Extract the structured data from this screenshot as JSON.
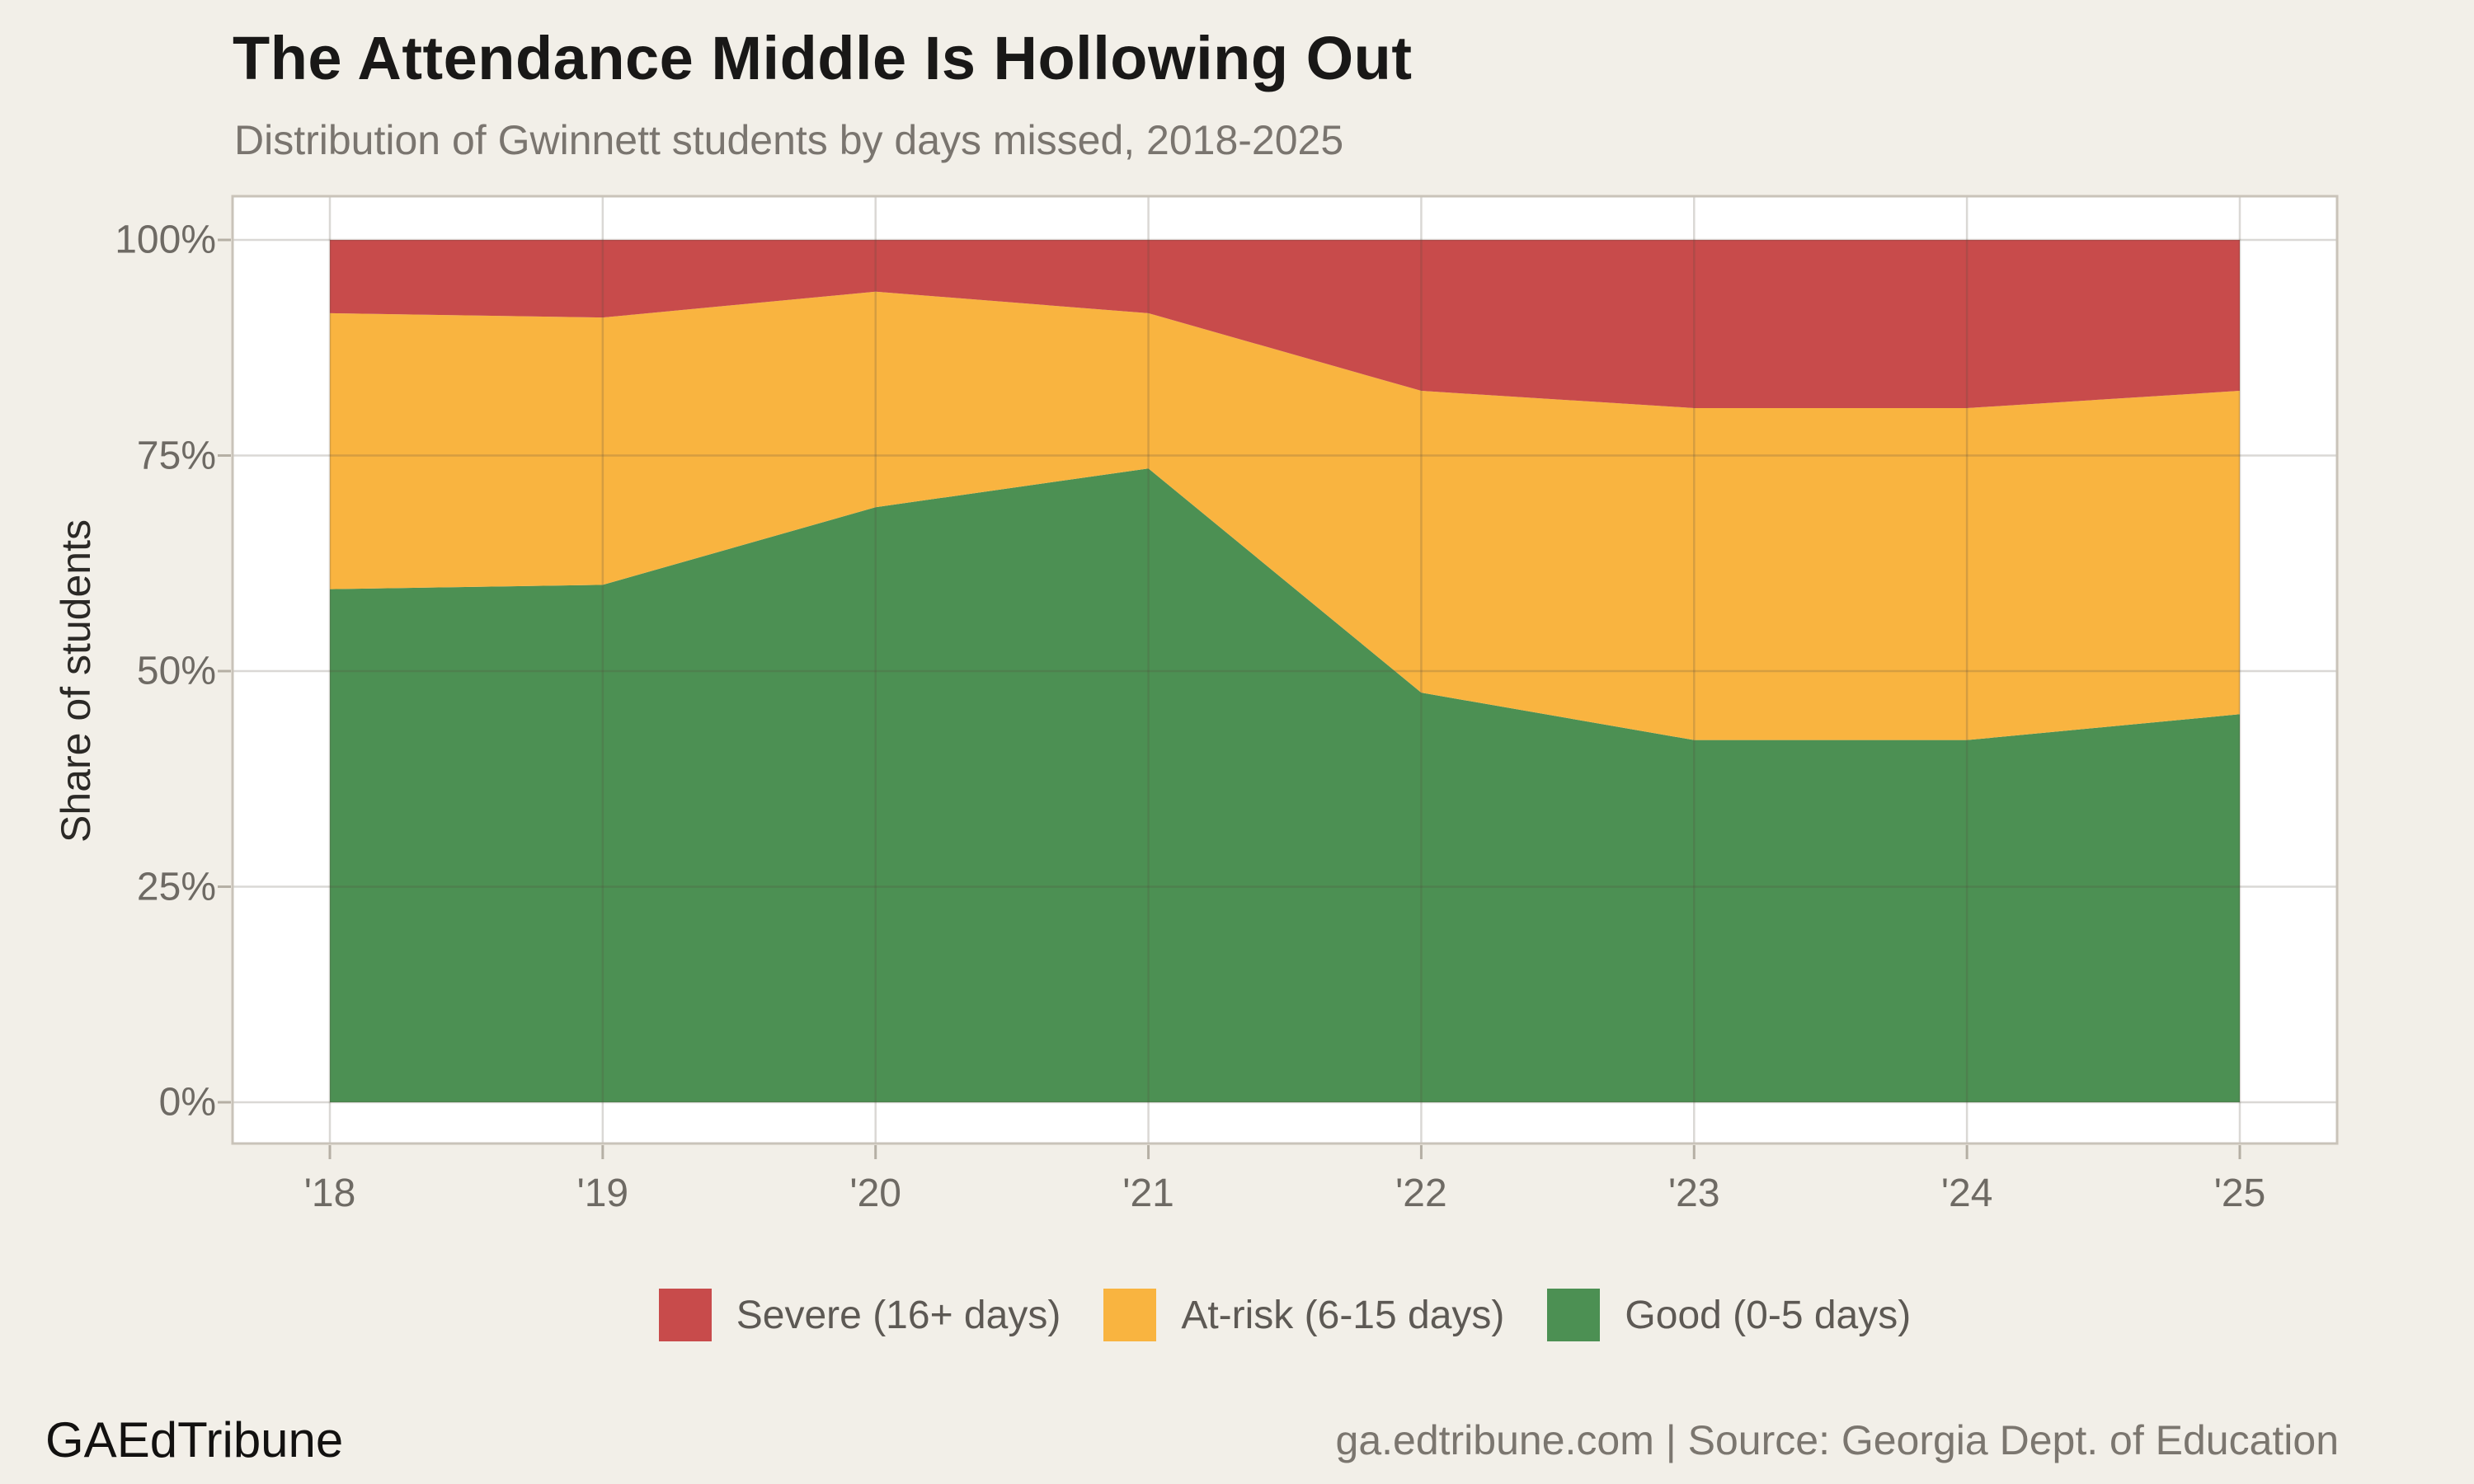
{
  "footer": {
    "brand": "GAEdTribune",
    "source": "ga.edtribune.com | Source: Georgia Dept. of Education"
  },
  "palette": {
    "background": "#f2efe8",
    "panel_fill": "#ffffff",
    "panel_border": "#c9c3b9",
    "grid_overlay": "rgba(85,77,63,0.22)",
    "tick_mark": "#b5afa4",
    "axis_text": "#6e6a64"
  },
  "chart_data": {
    "type": "area",
    "stacked": true,
    "unit": "percent",
    "title": "The Attendance Middle Is Hollowing Out",
    "subtitle": "Distribution of Gwinnett students by days missed, 2018-2025",
    "categories": [
      "'18",
      "'19",
      "'20",
      "'21",
      "'22",
      "'23",
      "'24",
      "'25"
    ],
    "years": [
      2018,
      2019,
      2020,
      2021,
      2022,
      2023,
      2024,
      2025
    ],
    "series": [
      {
        "name": "Good (0-5 days)",
        "key": "good",
        "color": "#4C9053",
        "values": [
          59.5,
          60,
          69,
          73.5,
          47.5,
          42,
          42,
          45
        ]
      },
      {
        "name": "At-risk (6-15 days)",
        "key": "atrisk",
        "color": "#F9B440",
        "values": [
          32,
          31,
          25,
          18,
          35,
          38.5,
          38.5,
          37.5
        ]
      },
      {
        "name": "Severe (16+ days)",
        "key": "severe",
        "color": "#C84B4B",
        "values": [
          8.5,
          9,
          6,
          8.5,
          17.5,
          19.5,
          19.5,
          17.5
        ]
      }
    ],
    "stack_order_bottom_to_top": [
      "good",
      "atrisk",
      "severe"
    ],
    "legend_order_left_to_right": [
      "Severe (16+ days)",
      "At-risk (6-15 days)",
      "Good (0-5 days)"
    ],
    "legend_position": "bottom",
    "xlabel": "",
    "ylabel": "Share of students",
    "yticks": [
      "0%",
      "25%",
      "50%",
      "75%",
      "100%"
    ],
    "ytick_values": [
      0,
      25,
      50,
      75,
      100
    ],
    "ylim": [
      0,
      100
    ],
    "grid": true
  }
}
